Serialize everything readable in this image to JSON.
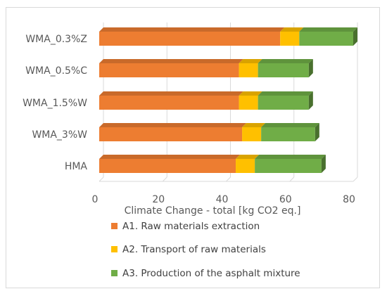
{
  "chart_data": {
    "type": "bar",
    "orientation": "horizontal",
    "stacked": true,
    "style": "3d",
    "title": "",
    "xlabel": "Climate Change - total [kg CO2 eq.]",
    "ylabel": "",
    "xlim": [
      0,
      80
    ],
    "xticks": [
      "0",
      "20",
      "40",
      "60",
      "80"
    ],
    "grid": true,
    "legend_position": "bottom",
    "categories": [
      "WMA_0.3%Z",
      "WMA_0.5%C",
      "WMA_1.5%W",
      "WMA_3%W",
      "HMA"
    ],
    "series": [
      {
        "name": "A1. Raw materials extraction",
        "color": "#ED7D31",
        "values": [
          57,
          44,
          44,
          45,
          43
        ]
      },
      {
        "name": "A2. Transport of raw materials",
        "color": "#FFC000",
        "values": [
          6,
          6,
          6,
          6,
          6
        ]
      },
      {
        "name": "A3. Production of the asphalt mixture",
        "color": "#70AD47",
        "values": [
          17,
          16,
          16,
          17,
          21
        ]
      }
    ]
  }
}
